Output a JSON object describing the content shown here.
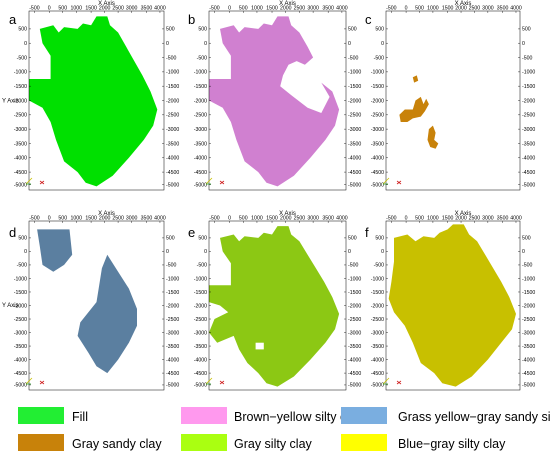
{
  "figure": {
    "panels": [
      {
        "letter": "a",
        "fill_color": "#00e000",
        "show_y_title": true
      },
      {
        "letter": "b",
        "fill_color": "#d080d0",
        "show_y_title": false
      },
      {
        "letter": "c",
        "fill_color": "#c8820a",
        "show_y_title": false
      },
      {
        "letter": "d",
        "fill_color": "#5b7fa0",
        "show_y_title": true
      },
      {
        "letter": "e",
        "fill_color": "#8cc814",
        "show_y_title": false
      },
      {
        "letter": "f",
        "fill_color": "#c8c000",
        "show_y_title": false
      }
    ],
    "x_axis": {
      "title": "X Axis",
      "tick_labels": [
        "-500",
        "0",
        "500",
        "1000",
        "1500",
        "2000",
        "2500",
        "3000",
        "3500",
        "4000"
      ]
    },
    "y_axis": {
      "title": "Y Axis",
      "tick_labels": [
        "500",
        "0",
        "-500",
        "-1000",
        "-1500",
        "-2000",
        "-2500",
        "-3000",
        "-3500",
        "-4000",
        "-4500",
        "-5000"
      ]
    },
    "legend": [
      {
        "label": "Fill",
        "color": "#22ee33"
      },
      {
        "label": "Brown−yellow silty clay",
        "color": "#ff99ee"
      },
      {
        "label": "Grass yellow−gray sandy silt",
        "color": "#7aaee0"
      },
      {
        "label": "Gray sandy clay",
        "color": "#c8820a"
      },
      {
        "label": "Gray silty clay",
        "color": "#aaff11"
      },
      {
        "label": "Blue−gray silty clay",
        "color": "#ffff00"
      }
    ]
  }
}
